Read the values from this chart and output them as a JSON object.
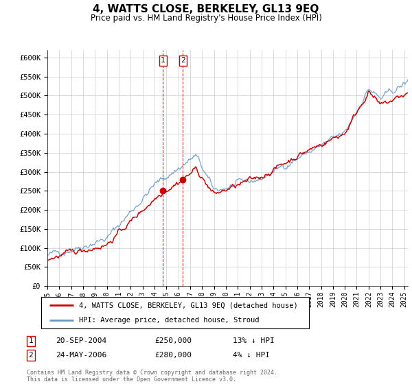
{
  "title": "4, WATTS CLOSE, BERKELEY, GL13 9EQ",
  "subtitle": "Price paid vs. HM Land Registry's House Price Index (HPI)",
  "title_fontsize": 11,
  "subtitle_fontsize": 9,
  "legend_line1": "4, WATTS CLOSE, BERKELEY, GL13 9EQ (detached house)",
  "legend_line2": "HPI: Average price, detached house, Stroud",
  "transaction1_date": "20-SEP-2004",
  "transaction1_price": "£250,000",
  "transaction1_hpi": "13% ↓ HPI",
  "transaction1_year": 2004.72,
  "transaction1_value": 250000,
  "transaction2_date": "24-MAY-2006",
  "transaction2_price": "£280,000",
  "transaction2_hpi": "4% ↓ HPI",
  "transaction2_year": 2006.38,
  "transaction2_value": 280000,
  "footer": "Contains HM Land Registry data © Crown copyright and database right 2024.\nThis data is licensed under the Open Government Licence v3.0.",
  "ylim": [
    0,
    620000
  ],
  "xlim_start": 1995.0,
  "xlim_end": 2025.3,
  "yticks": [
    0,
    50000,
    100000,
    150000,
    200000,
    250000,
    300000,
    350000,
    400000,
    450000,
    500000,
    550000,
    600000
  ],
  "ytick_labels": [
    "£0",
    "£50K",
    "£100K",
    "£150K",
    "£200K",
    "£250K",
    "£300K",
    "£350K",
    "£400K",
    "£450K",
    "£500K",
    "£550K",
    "£600K"
  ],
  "xticks": [
    1995,
    1996,
    1997,
    1998,
    1999,
    2000,
    2001,
    2002,
    2003,
    2004,
    2005,
    2006,
    2007,
    2008,
    2009,
    2010,
    2011,
    2012,
    2013,
    2014,
    2015,
    2016,
    2017,
    2018,
    2019,
    2020,
    2021,
    2022,
    2023,
    2024,
    2025
  ],
  "hpi_color": "#6699cc",
  "price_color": "#cc0000",
  "dot_color": "#cc0000",
  "vline_color": "#cc0000",
  "background_color": "#ffffff",
  "grid_color": "#cccccc"
}
